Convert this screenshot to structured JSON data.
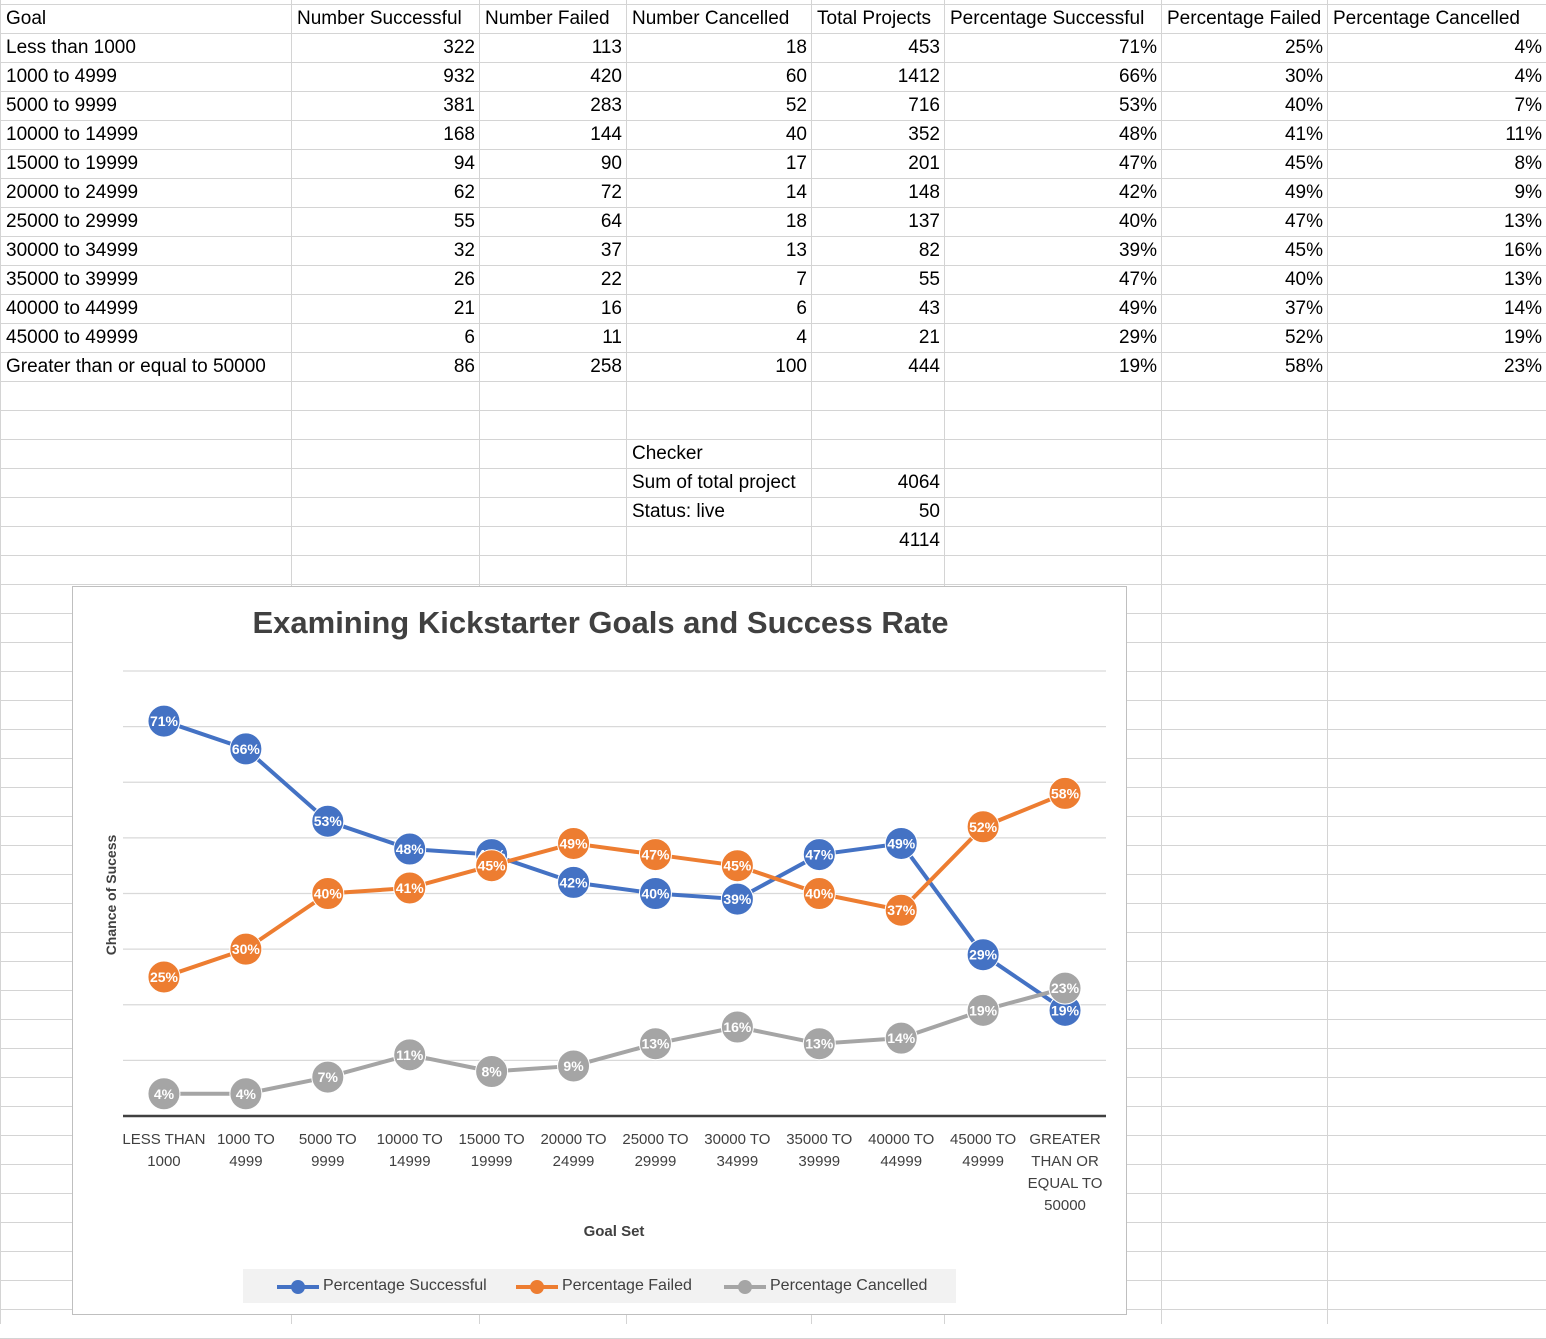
{
  "table": {
    "headers": [
      "Goal",
      "Number Successful",
      "Number Failed",
      "Number Cancelled",
      "Total Projects",
      "Percentage Successful",
      "Percentage Failed",
      "Percentage Cancelled"
    ],
    "rows": [
      [
        "Less than 1000",
        "322",
        "113",
        "18",
        "453",
        "71%",
        "25%",
        "4%"
      ],
      [
        "1000 to 4999",
        "932",
        "420",
        "60",
        "1412",
        "66%",
        "30%",
        "4%"
      ],
      [
        "5000 to 9999",
        "381",
        "283",
        "52",
        "716",
        "53%",
        "40%",
        "7%"
      ],
      [
        "10000 to 14999",
        "168",
        "144",
        "40",
        "352",
        "48%",
        "41%",
        "11%"
      ],
      [
        "15000 to 19999",
        "94",
        "90",
        "17",
        "201",
        "47%",
        "45%",
        "8%"
      ],
      [
        "20000 to 24999",
        "62",
        "72",
        "14",
        "148",
        "42%",
        "49%",
        "9%"
      ],
      [
        "25000 to 29999",
        "55",
        "64",
        "18",
        "137",
        "40%",
        "47%",
        "13%"
      ],
      [
        "30000 to 34999",
        "32",
        "37",
        "13",
        "82",
        "39%",
        "45%",
        "16%"
      ],
      [
        "35000 to 39999",
        "26",
        "22",
        "7",
        "55",
        "47%",
        "40%",
        "13%"
      ],
      [
        "40000 to 44999",
        "21",
        "16",
        "6",
        "43",
        "49%",
        "37%",
        "14%"
      ],
      [
        "45000 to 49999",
        "6",
        "11",
        "4",
        "21",
        "29%",
        "52%",
        "19%"
      ],
      [
        "Greater than or equal to 50000",
        "86",
        "258",
        "100",
        "444",
        "19%",
        "58%",
        "23%"
      ]
    ]
  },
  "checker": {
    "title": "Checker",
    "sum_label": "Sum of total project",
    "sum_value": "4064",
    "live_label": "Status: live",
    "live_value": "50",
    "total_value": "4114"
  },
  "chart_data": {
    "type": "line",
    "title": "Examining Kickstarter Goals and Success Rate",
    "xlabel": "Goal Set",
    "ylabel": "Chance of Sucess",
    "categories": [
      "LESS THAN 1000",
      "1000 TO 4999",
      "5000 TO 9999",
      "10000 TO 14999",
      "15000 TO 19999",
      "20000 TO 24999",
      "25000 TO 29999",
      "30000 TO 34999",
      "35000 TO 39999",
      "40000 TO 44999",
      "45000 TO 49999",
      "GREATER THAN OR EQUAL TO 50000"
    ],
    "category_lines": [
      [
        "LESS THAN",
        "1000"
      ],
      [
        "1000 TO",
        "4999"
      ],
      [
        "5000 TO",
        "9999"
      ],
      [
        "10000 TO",
        "14999"
      ],
      [
        "15000 TO",
        "19999"
      ],
      [
        "20000 TO",
        "24999"
      ],
      [
        "25000 TO",
        "29999"
      ],
      [
        "30000 TO",
        "34999"
      ],
      [
        "35000 TO",
        "39999"
      ],
      [
        "40000 TO",
        "44999"
      ],
      [
        "45000 TO",
        "49999"
      ],
      [
        "GREATER",
        "THAN OR",
        "EQUAL TO",
        "50000"
      ]
    ],
    "ylim": [
      0,
      0.8
    ],
    "grid": true,
    "legend_position": "bottom",
    "series": [
      {
        "name": "Percentage Successful",
        "color": "#4472c4",
        "values": [
          71,
          66,
          53,
          48,
          47,
          42,
          40,
          39,
          47,
          49,
          29,
          19
        ]
      },
      {
        "name": "Percentage Failed",
        "color": "#ed7d31",
        "values": [
          25,
          30,
          40,
          41,
          45,
          49,
          47,
          45,
          40,
          37,
          52,
          58
        ]
      },
      {
        "name": "Percentage Cancelled",
        "color": "#a5a5a5",
        "values": [
          4,
          4,
          7,
          11,
          8,
          9,
          13,
          16,
          13,
          14,
          19,
          23
        ]
      }
    ]
  }
}
